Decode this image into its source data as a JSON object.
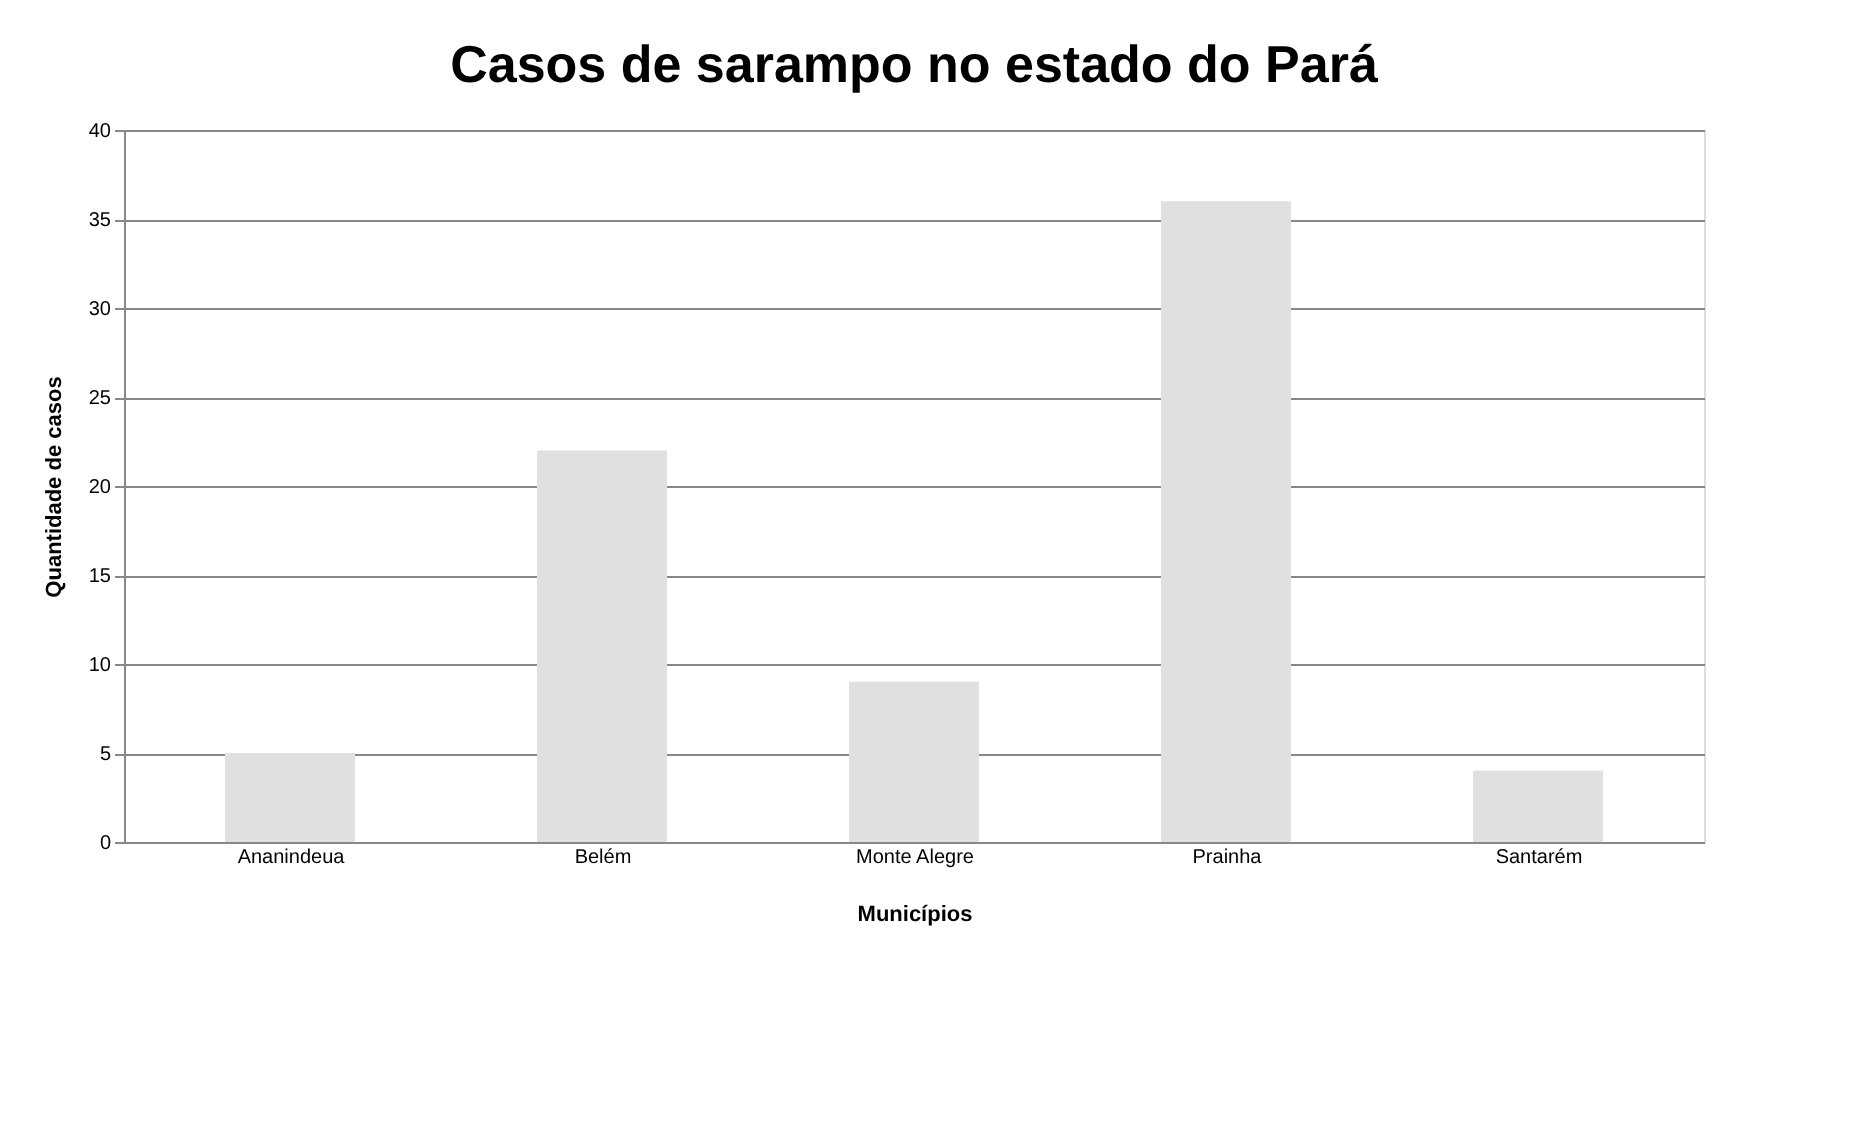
{
  "chart_data": {
    "type": "bar",
    "title": "Casos de sarampo no estado do Pará",
    "xlabel": "Municípios",
    "ylabel": "Quantidade de casos",
    "categories": [
      "Ananindeua",
      "Belém",
      "Monte Alegre",
      "Prainha",
      "Santarém"
    ],
    "values": [
      5,
      22,
      9,
      36,
      4
    ],
    "color": "#e0e0e0",
    "ylim": [
      0,
      40
    ],
    "yticks": [
      0,
      5,
      10,
      15,
      20,
      25,
      30,
      35,
      40
    ],
    "grid": "y"
  }
}
